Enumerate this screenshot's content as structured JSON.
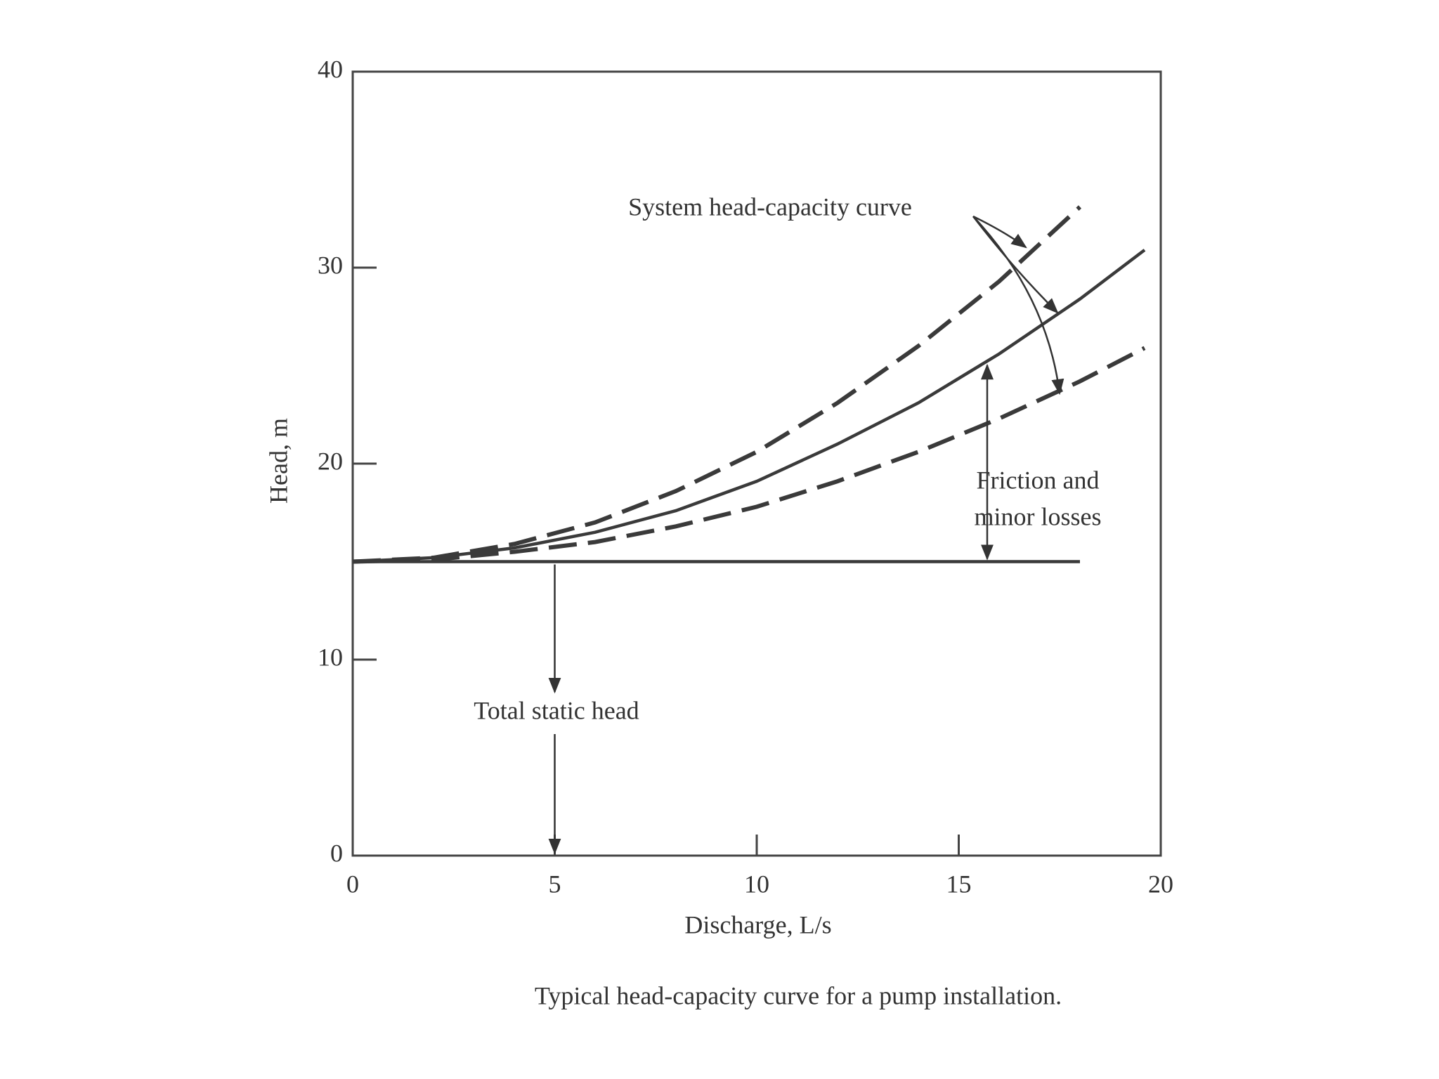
{
  "chart_data": {
    "type": "line",
    "caption": "Typical head-capacity curve for a pump installation.",
    "xlabel": "Discharge, L/s",
    "ylabel": "Head, m",
    "x": [
      0,
      2,
      4,
      6,
      8,
      10,
      12,
      14,
      16,
      18,
      19.6
    ],
    "series": [
      {
        "color": "#3a3a3a",
        "dash": true,
        "values": [
          15,
          15.2,
          15.9,
          17.0,
          18.6,
          20.6,
          23.1,
          26.0,
          29.3,
          33.1,
          null
        ]
      },
      {
        "color": "#3a3a3a",
        "dash": false,
        "values": [
          15,
          15.2,
          15.7,
          16.5,
          17.6,
          19.1,
          21.0,
          23.1,
          25.6,
          28.4,
          30.9
        ]
      },
      {
        "color": "#3a3a3a",
        "dash": true,
        "values": [
          15,
          15.1,
          15.5,
          16.0,
          16.8,
          17.8,
          19.1,
          20.6,
          22.3,
          24.2,
          25.9
        ]
      },
      {
        "color": "#3a3a3a",
        "dash": false,
        "values": [
          15,
          15,
          15,
          15,
          15,
          15,
          15,
          15,
          15,
          15,
          null
        ]
      }
    ],
    "annotations": [
      "System head-capacity curve",
      "Friction and",
      "minor losses",
      "Total static head"
    ],
    "xlim": [
      0,
      20
    ],
    "xticks": [
      0,
      5,
      10,
      15,
      20
    ],
    "ylim": [
      0,
      40
    ],
    "yticks": [
      0,
      10,
      20,
      30,
      40
    ]
  }
}
